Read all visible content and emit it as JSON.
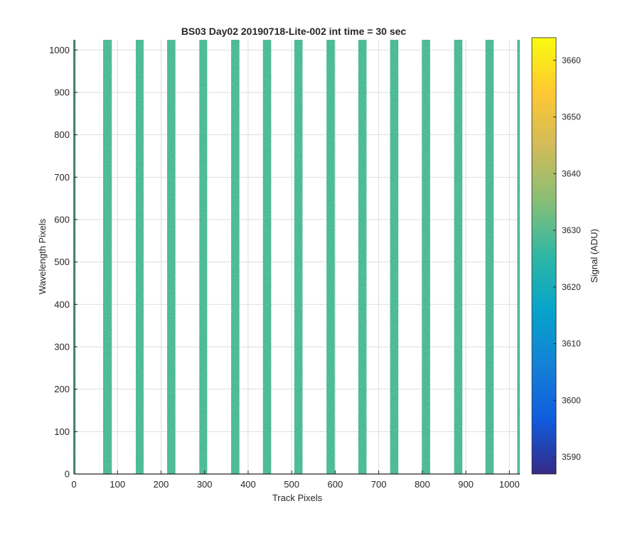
{
  "chart_data": {
    "type": "heatmap",
    "title": "BS03 Day02 20190718-Lite-002 int time = 30 sec",
    "xlabel": "Track Pixels",
    "ylabel": "Wavelength Pixels",
    "xlim": [
      0,
      1024
    ],
    "ylim": [
      0,
      1024
    ],
    "x_ticks": [
      0,
      100,
      200,
      300,
      400,
      500,
      600,
      700,
      800,
      900,
      1000
    ],
    "y_ticks": [
      0,
      100,
      200,
      300,
      400,
      500,
      600,
      700,
      800,
      900,
      1000
    ],
    "grid": true,
    "colorbar": {
      "label": "Signal (ADU)",
      "range": [
        3587,
        3664
      ],
      "ticks": [
        3590,
        3600,
        3610,
        3620,
        3630,
        3640,
        3650,
        3660
      ],
      "colormap": "parula",
      "colors": [
        "#352a87",
        "#0f5cdd",
        "#1481d6",
        "#06a4ca",
        "#2eb7a4",
        "#87bf77",
        "#d1bb59",
        "#fec832",
        "#f9fb0e"
      ]
    },
    "stripes": [
      {
        "x_start": 0,
        "x_end": 4
      },
      {
        "x_start": 67,
        "x_end": 87
      },
      {
        "x_start": 142,
        "x_end": 160
      },
      {
        "x_start": 214,
        "x_end": 233
      },
      {
        "x_start": 288,
        "x_end": 306
      },
      {
        "x_start": 361,
        "x_end": 380
      },
      {
        "x_start": 434,
        "x_end": 453
      },
      {
        "x_start": 506,
        "x_end": 525
      },
      {
        "x_start": 580,
        "x_end": 599
      },
      {
        "x_start": 653,
        "x_end": 672
      },
      {
        "x_start": 726,
        "x_end": 745
      },
      {
        "x_start": 799,
        "x_end": 818
      },
      {
        "x_start": 873,
        "x_end": 892
      },
      {
        "x_start": 945,
        "x_end": 964
      },
      {
        "x_start": 1018,
        "x_end": 1024
      }
    ],
    "stripe_base_value": 3628,
    "stripe_value_noise": 6
  }
}
